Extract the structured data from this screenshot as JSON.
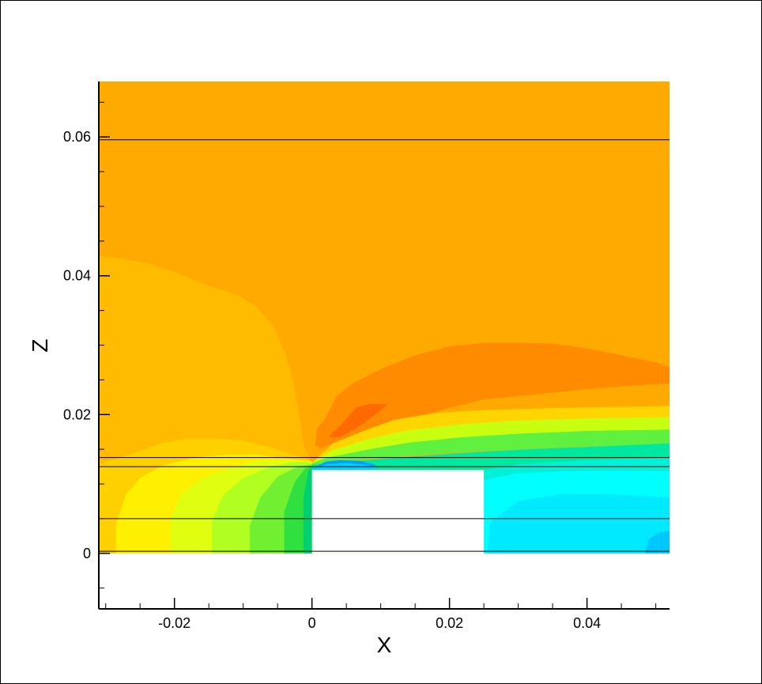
{
  "chart_data": {
    "type": "heatmap",
    "title": "",
    "xlabel": "X",
    "ylabel": "Z",
    "xlim": [
      -0.031,
      0.052
    ],
    "ylim": [
      -0.008,
      0.068
    ],
    "x_ticks": [
      {
        "value": -0.02,
        "label": "-0.02"
      },
      {
        "value": 0,
        "label": "0"
      },
      {
        "value": 0.02,
        "label": "0.02"
      },
      {
        "value": 0.04,
        "label": "0.04"
      }
    ],
    "y_ticks": [
      {
        "value": 0,
        "label": "0"
      },
      {
        "value": 0.02,
        "label": "0.02"
      },
      {
        "value": 0.04,
        "label": "0.04"
      },
      {
        "value": 0.06,
        "label": "0.06"
      }
    ],
    "x_minor_step": 0.005,
    "y_minor_step": 0.005,
    "grid": false,
    "legend": "none",
    "colormap": "flood contour (blue-cyan-green-yellow-orange-red)",
    "field_extent": {
      "x": [
        -0.031,
        0.052
      ],
      "z": [
        0,
        0.068
      ]
    },
    "obstacle": {
      "x": [
        0,
        0.025
      ],
      "z": [
        0,
        0.012
      ]
    },
    "horizontal_lines_z": [
      0.0596,
      0.0138,
      0.0125,
      0.005,
      0.0003
    ],
    "contour_bands": [
      {
        "name": "outer-flow",
        "color": "#FFAA00",
        "points": [
          [
            -0.031,
            0.068
          ],
          [
            0.052,
            0.068
          ],
          [
            0.052,
            0
          ],
          [
            -0.031,
            0
          ]
        ]
      },
      {
        "name": "upstream-light-orange",
        "color": "#FFBB00",
        "points": [
          [
            -0.031,
            0.0428
          ],
          [
            -0.028,
            0.0425
          ],
          [
            -0.024,
            0.0418
          ],
          [
            -0.02,
            0.0405
          ],
          [
            -0.015,
            0.0385
          ],
          [
            -0.011,
            0.0373
          ],
          [
            -0.008,
            0.0355
          ],
          [
            -0.0055,
            0.0325
          ],
          [
            -0.004,
            0.029
          ],
          [
            -0.0028,
            0.025
          ],
          [
            -0.0018,
            0.0195
          ],
          [
            -0.0012,
            0.0155
          ],
          [
            0,
            0.013
          ],
          [
            0,
            0
          ],
          [
            -0.031,
            0
          ]
        ]
      },
      {
        "name": "upstream-yellow-orange",
        "color": "#FFD000",
        "points": [
          [
            -0.031,
            0.0128
          ],
          [
            -0.027,
            0.014
          ],
          [
            -0.022,
            0.0158
          ],
          [
            -0.018,
            0.0165
          ],
          [
            -0.014,
            0.0165
          ],
          [
            -0.01,
            0.0162
          ],
          [
            -0.006,
            0.0152
          ],
          [
            -0.003,
            0.0143
          ],
          [
            -0.0012,
            0.0138
          ],
          [
            0,
            0.0132
          ],
          [
            0,
            0
          ],
          [
            -0.031,
            0
          ]
        ]
      },
      {
        "name": "upstream-yellow",
        "color": "#FFF000",
        "points": [
          [
            -0.0285,
            0
          ],
          [
            -0.0285,
            0.004
          ],
          [
            -0.027,
            0.0085
          ],
          [
            -0.025,
            0.0108
          ],
          [
            -0.022,
            0.0125
          ],
          [
            -0.017,
            0.0138
          ],
          [
            -0.012,
            0.0142
          ],
          [
            -0.008,
            0.0142
          ],
          [
            -0.004,
            0.0137
          ],
          [
            -0.0015,
            0.0134
          ],
          [
            0,
            0.0132
          ],
          [
            0,
            0
          ]
        ]
      },
      {
        "name": "upstream-yellow-green",
        "color": "#E0FF10",
        "points": [
          [
            -0.0205,
            0
          ],
          [
            -0.0205,
            0.005
          ],
          [
            -0.019,
            0.0085
          ],
          [
            -0.016,
            0.0108
          ],
          [
            -0.012,
            0.0122
          ],
          [
            -0.008,
            0.0132
          ],
          [
            -0.004,
            0.0134
          ],
          [
            0,
            0.0131
          ],
          [
            0,
            0
          ]
        ]
      },
      {
        "name": "upstream-light-green",
        "color": "#B0FF20",
        "points": [
          [
            -0.0145,
            0
          ],
          [
            -0.0145,
            0.0045
          ],
          [
            -0.013,
            0.0082
          ],
          [
            -0.01,
            0.0108
          ],
          [
            -0.006,
            0.0125
          ],
          [
            -0.002,
            0.0132
          ],
          [
            0,
            0.013
          ],
          [
            0,
            0
          ]
        ]
      },
      {
        "name": "upstream-green",
        "color": "#70F030",
        "points": [
          [
            -0.009,
            0
          ],
          [
            -0.009,
            0.004
          ],
          [
            -0.0075,
            0.008
          ],
          [
            -0.005,
            0.011
          ],
          [
            -0.002,
            0.0125
          ],
          [
            0,
            0.0128
          ],
          [
            0,
            0
          ]
        ]
      },
      {
        "name": "upstream-deep-green",
        "color": "#30E040",
        "points": [
          [
            -0.004,
            0
          ],
          [
            -0.004,
            0.006
          ],
          [
            -0.0025,
            0.0102
          ],
          [
            -0.001,
            0.0122
          ],
          [
            0,
            0.0126
          ],
          [
            0,
            0
          ]
        ]
      },
      {
        "name": "upstream-blue-green",
        "color": "#00D070",
        "points": [
          [
            -0.0012,
            0
          ],
          [
            -0.0012,
            0.008
          ],
          [
            -0.0005,
            0.0118
          ],
          [
            0,
            0.0125
          ],
          [
            0,
            0
          ]
        ]
      },
      {
        "name": "wake-dark-orange",
        "color": "#FF8C00",
        "points": [
          [
            0.0005,
            0.0155
          ],
          [
            0.0008,
            0.018
          ],
          [
            0.002,
            0.0195
          ],
          [
            0.0035,
            0.0225
          ],
          [
            0.006,
            0.0245
          ],
          [
            0.01,
            0.0265
          ],
          [
            0.015,
            0.0285
          ],
          [
            0.02,
            0.0298
          ],
          [
            0.025,
            0.0303
          ],
          [
            0.03,
            0.0303
          ],
          [
            0.035,
            0.0302
          ],
          [
            0.04,
            0.0295
          ],
          [
            0.045,
            0.0285
          ],
          [
            0.05,
            0.0275
          ],
          [
            0.052,
            0.0268
          ],
          [
            0.052,
            0.0245
          ],
          [
            0.048,
            0.0243
          ],
          [
            0.04,
            0.0237
          ],
          [
            0.032,
            0.0229
          ],
          [
            0.025,
            0.0222
          ],
          [
            0.02,
            0.021
          ],
          [
            0.015,
            0.0195
          ],
          [
            0.01,
            0.0182
          ],
          [
            0.006,
            0.0168
          ],
          [
            0.003,
            0.0158
          ],
          [
            0.0015,
            0.0152
          ]
        ]
      },
      {
        "name": "wake-red-orange",
        "color": "#FF6A00",
        "points": [
          [
            0.0025,
            0.0168
          ],
          [
            0.0045,
            0.0188
          ],
          [
            0.0065,
            0.021
          ],
          [
            0.0085,
            0.0215
          ],
          [
            0.011,
            0.0215
          ],
          [
            0.0085,
            0.0195
          ],
          [
            0.006,
            0.0178
          ],
          [
            0.004,
            0.0168
          ]
        ]
      },
      {
        "name": "shear-yellow",
        "color": "#FFD500",
        "points": [
          [
            0,
            0.013
          ],
          [
            0.003,
            0.0158
          ],
          [
            0.008,
            0.0178
          ],
          [
            0.012,
            0.0192
          ],
          [
            0.018,
            0.0202
          ],
          [
            0.025,
            0.0206
          ],
          [
            0.032,
            0.0208
          ],
          [
            0.04,
            0.021
          ],
          [
            0.052,
            0.0212
          ],
          [
            0.052,
            0.0196
          ],
          [
            0.04,
            0.0194
          ],
          [
            0.03,
            0.0191
          ],
          [
            0.02,
            0.0183
          ],
          [
            0.012,
            0.0172
          ],
          [
            0.007,
            0.0159
          ],
          [
            0.003,
            0.0145
          ]
        ]
      },
      {
        "name": "shear-yellow-green",
        "color": "#C8FF10",
        "points": [
          [
            0,
            0.013
          ],
          [
            0.003,
            0.0148
          ],
          [
            0.008,
            0.0164
          ],
          [
            0.014,
            0.0177
          ],
          [
            0.022,
            0.0186
          ],
          [
            0.03,
            0.0191
          ],
          [
            0.04,
            0.0194
          ],
          [
            0.052,
            0.0196
          ],
          [
            0.052,
            0.0178
          ],
          [
            0.04,
            0.0176
          ],
          [
            0.03,
            0.0172
          ],
          [
            0.02,
            0.0166
          ],
          [
            0.012,
            0.0156
          ],
          [
            0.006,
            0.0145
          ],
          [
            0.002,
            0.0137
          ]
        ]
      },
      {
        "name": "shear-green",
        "color": "#60F040",
        "points": [
          [
            0,
            0.0129
          ],
          [
            0.002,
            0.0137
          ],
          [
            0.008,
            0.0149
          ],
          [
            0.014,
            0.0159
          ],
          [
            0.022,
            0.0167
          ],
          [
            0.03,
            0.0172
          ],
          [
            0.04,
            0.0176
          ],
          [
            0.052,
            0.0178
          ],
          [
            0.052,
            0.0158
          ],
          [
            0.04,
            0.0154
          ],
          [
            0.03,
            0.015
          ],
          [
            0.02,
            0.0145
          ],
          [
            0.012,
            0.0139
          ],
          [
            0.006,
            0.0134
          ],
          [
            0.002,
            0.013
          ]
        ]
      },
      {
        "name": "shear-blue-green",
        "color": "#00E8A0",
        "points": [
          [
            0,
            0.0128
          ],
          [
            0.004,
            0.0131
          ],
          [
            0.012,
            0.0137
          ],
          [
            0.02,
            0.0143
          ],
          [
            0.03,
            0.0149
          ],
          [
            0.04,
            0.0153
          ],
          [
            0.052,
            0.0158
          ],
          [
            0.052,
            0
          ],
          [
            0.025,
            0
          ],
          [
            0.025,
            0.012
          ],
          [
            0,
            0.012
          ]
        ]
      },
      {
        "name": "wake-cyan-green",
        "color": "#00F0D8",
        "points": [
          [
            0.025,
            0
          ],
          [
            0.025,
            0.012
          ],
          [
            0.03,
            0.0128
          ],
          [
            0.04,
            0.0134
          ],
          [
            0.052,
            0.0138
          ],
          [
            0.052,
            0
          ]
        ]
      },
      {
        "name": "wake-cyan",
        "color": "#00FFFF",
        "points": [
          [
            0.025,
            0
          ],
          [
            0.025,
            0.0105
          ],
          [
            0.03,
            0.0115
          ],
          [
            0.037,
            0.0118
          ],
          [
            0.045,
            0.0119
          ],
          [
            0.052,
            0.0118
          ],
          [
            0.052,
            0
          ]
        ]
      },
      {
        "name": "wake-light-cyan",
        "color": "#00EAFF",
        "points": [
          [
            0.0255,
            0
          ],
          [
            0.026,
            0.0045
          ],
          [
            0.03,
            0.0075
          ],
          [
            0.036,
            0.0085
          ],
          [
            0.043,
            0.0085
          ],
          [
            0.049,
            0.0082
          ],
          [
            0.052,
            0.008
          ],
          [
            0.052,
            0
          ]
        ]
      },
      {
        "name": "wake-blue",
        "color": "#00C8FF",
        "points": [
          [
            0.0485,
            0
          ],
          [
            0.049,
            0.002
          ],
          [
            0.0505,
            0.003
          ],
          [
            0.052,
            0.0032
          ],
          [
            0.052,
            0
          ]
        ]
      },
      {
        "name": "separation-blue",
        "color": "#00A0FF",
        "points": [
          [
            0,
            0.0121
          ],
          [
            0.002,
            0.0132
          ],
          [
            0.004,
            0.0134
          ],
          [
            0.007,
            0.0133
          ],
          [
            0.009,
            0.0128
          ],
          [
            0.0095,
            0.0123
          ],
          [
            0.008,
            0.0121
          ]
        ]
      },
      {
        "name": "separation-light-blue",
        "color": "#00D0FF",
        "points": [
          [
            0,
            0.0121
          ],
          [
            0.002,
            0.0128
          ],
          [
            0.005,
            0.013
          ],
          [
            0.008,
            0.0127
          ],
          [
            0.0095,
            0.0123
          ],
          [
            0.008,
            0.0121
          ]
        ]
      }
    ]
  }
}
